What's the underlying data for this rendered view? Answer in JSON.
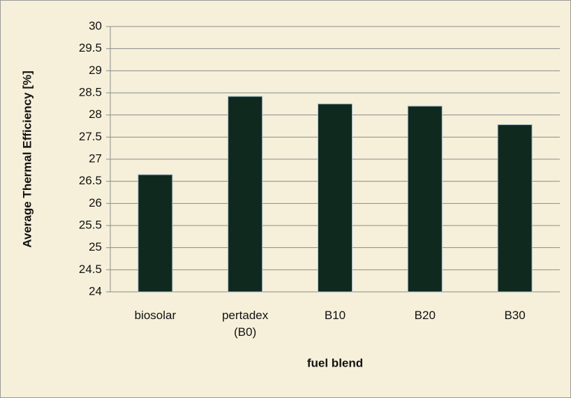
{
  "chart_data": {
    "type": "bar",
    "y_label": "Average Thermal Efficiency  [%]",
    "x_label": "fuel blend",
    "categories": [
      "biosolar",
      "pertadex (B0)",
      "B10",
      "B20",
      "B30"
    ],
    "values": [
      26.65,
      28.42,
      28.25,
      28.2,
      27.78
    ],
    "color": "#10291e",
    "ylim": [
      24,
      30
    ],
    "yticks": [
      24,
      24.5,
      25,
      25.5,
      26,
      26.5,
      27,
      27.5,
      28,
      28.5,
      29,
      29.5,
      30
    ],
    "grid": true
  }
}
